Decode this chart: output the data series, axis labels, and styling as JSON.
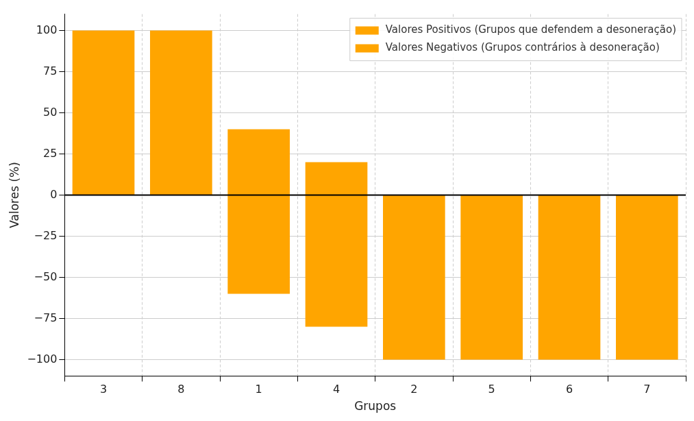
{
  "chart_data": {
    "type": "bar",
    "xlabel": "Grupos",
    "ylabel": "Valores (%)",
    "categories": [
      "3",
      "8",
      "1",
      "4",
      "2",
      "5",
      "6",
      "7"
    ],
    "series": [
      {
        "name": "Valores Positivos (Grupos que defendem a desoneração)",
        "color": "#ffa500",
        "values": [
          100,
          100,
          40,
          20,
          null,
          null,
          null,
          null
        ]
      },
      {
        "name": "Valores Negativos (Grupos contrários à desoneração)",
        "color": "#ffa500",
        "values": [
          null,
          null,
          -60,
          -80,
          -100,
          -100,
          -100,
          -100
        ]
      }
    ],
    "stacked": true,
    "ylim": [
      -110,
      110
    ],
    "yticks": [
      {
        "value": -100,
        "label": "−100"
      },
      {
        "value": -75,
        "label": "−75"
      },
      {
        "value": -50,
        "label": "−50"
      },
      {
        "value": -25,
        "label": "−25"
      },
      0,
      25,
      50,
      75,
      100
    ],
    "ref_lines": [
      {
        "axis": "y",
        "value": 0,
        "color": "#000000"
      }
    ],
    "grid": true,
    "legend": "top right"
  }
}
